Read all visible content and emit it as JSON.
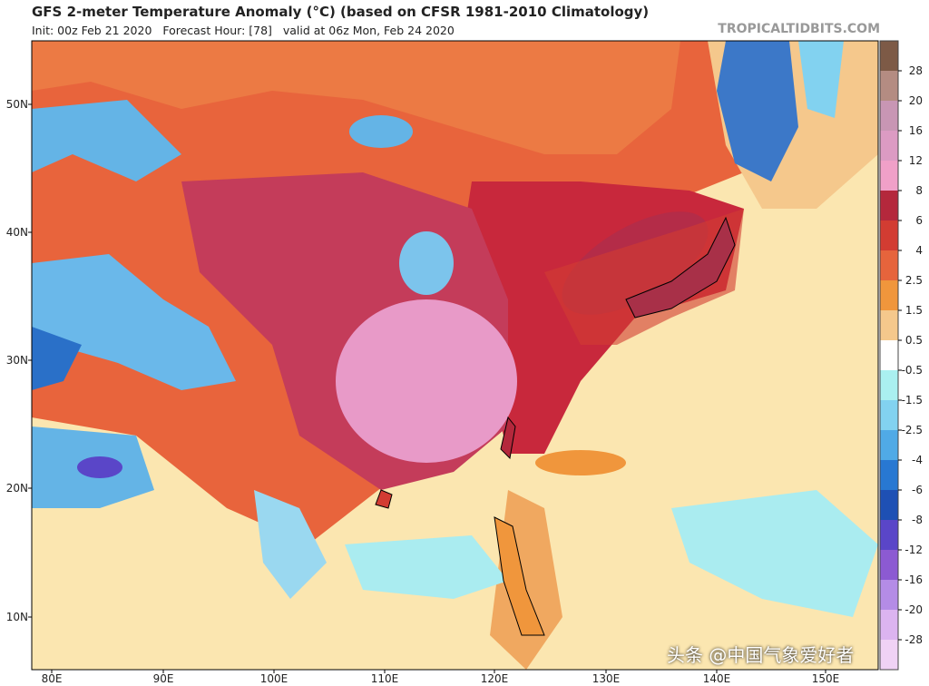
{
  "header": {
    "title": "GFS 2-meter Temperature Anomaly (°C) (based on CFSR 1981-2010 Climatology)",
    "subtitle": "Init: 00z Feb 21 2020   Forecast Hour: [78]   valid at 06z Mon, Feb 24 2020",
    "site": "TROPICALTIDBITS.COM"
  },
  "map": {
    "lat_labels": [
      "50N",
      "40N",
      "30N",
      "20N",
      "10N"
    ],
    "lon_labels": [
      "80E",
      "90E",
      "100E",
      "110E",
      "120E",
      "130E",
      "140E",
      "150E"
    ]
  },
  "colorbar": {
    "labels": [
      "28",
      "20",
      "16",
      "12",
      "8",
      "6",
      "4",
      "2.5",
      "1.5",
      "0.5",
      "-0.5",
      "-1.5",
      "-2.5",
      "-4",
      "-6",
      "-8",
      "-12",
      "-16",
      "-20",
      "-28"
    ],
    "colors": [
      "#7d5a46",
      "#b48c82",
      "#c896b4",
      "#dc9bc3",
      "#f0a0c8",
      "#b4283c",
      "#d23c32",
      "#e6643c",
      "#f0963c",
      "#f5c88c",
      "#ffffff",
      "#aaf0f0",
      "#82d2f0",
      "#50aae6",
      "#2878d2",
      "#1e50b4",
      "#5a46c8",
      "#8c5ad2",
      "#b48ce6",
      "#dcb4f0",
      "#f0d2f5"
    ]
  },
  "watermark": "头条 @中国气象爱好者"
}
